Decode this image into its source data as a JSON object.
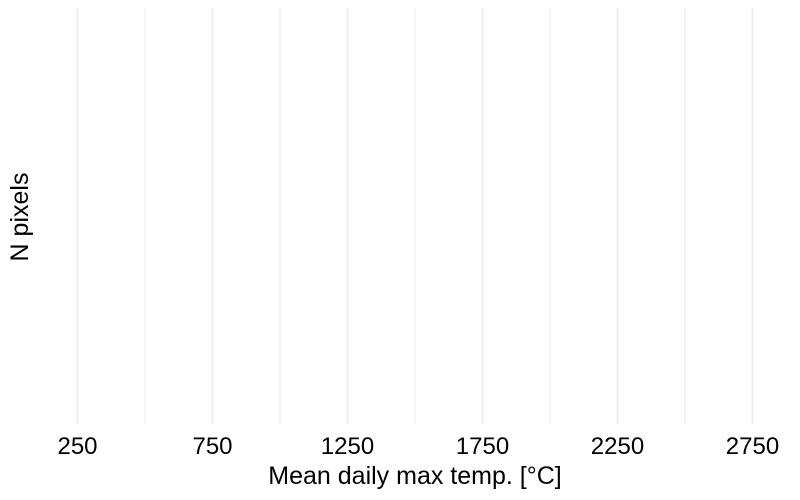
{
  "chart_data": {
    "type": "bar",
    "xlabel": "Mean daily max temp. [°C]",
    "ylabel": "N pixels",
    "xlim": [
      0,
      3000
    ],
    "x_ticks": [
      250,
      750,
      1250,
      1750,
      2250,
      2750
    ],
    "x_tick_labels": [
      "250",
      "750",
      "1250",
      "1750",
      "2250",
      "2750"
    ],
    "x_minor_gridlines": [
      500,
      1000,
      1500,
      2000,
      2500,
      3000
    ],
    "y_ticks": [],
    "series": [],
    "grid": true,
    "legend": "none",
    "colors": {
      "background": "#ffffff",
      "gridline": "#ebebeb",
      "text": "#000000"
    }
  }
}
